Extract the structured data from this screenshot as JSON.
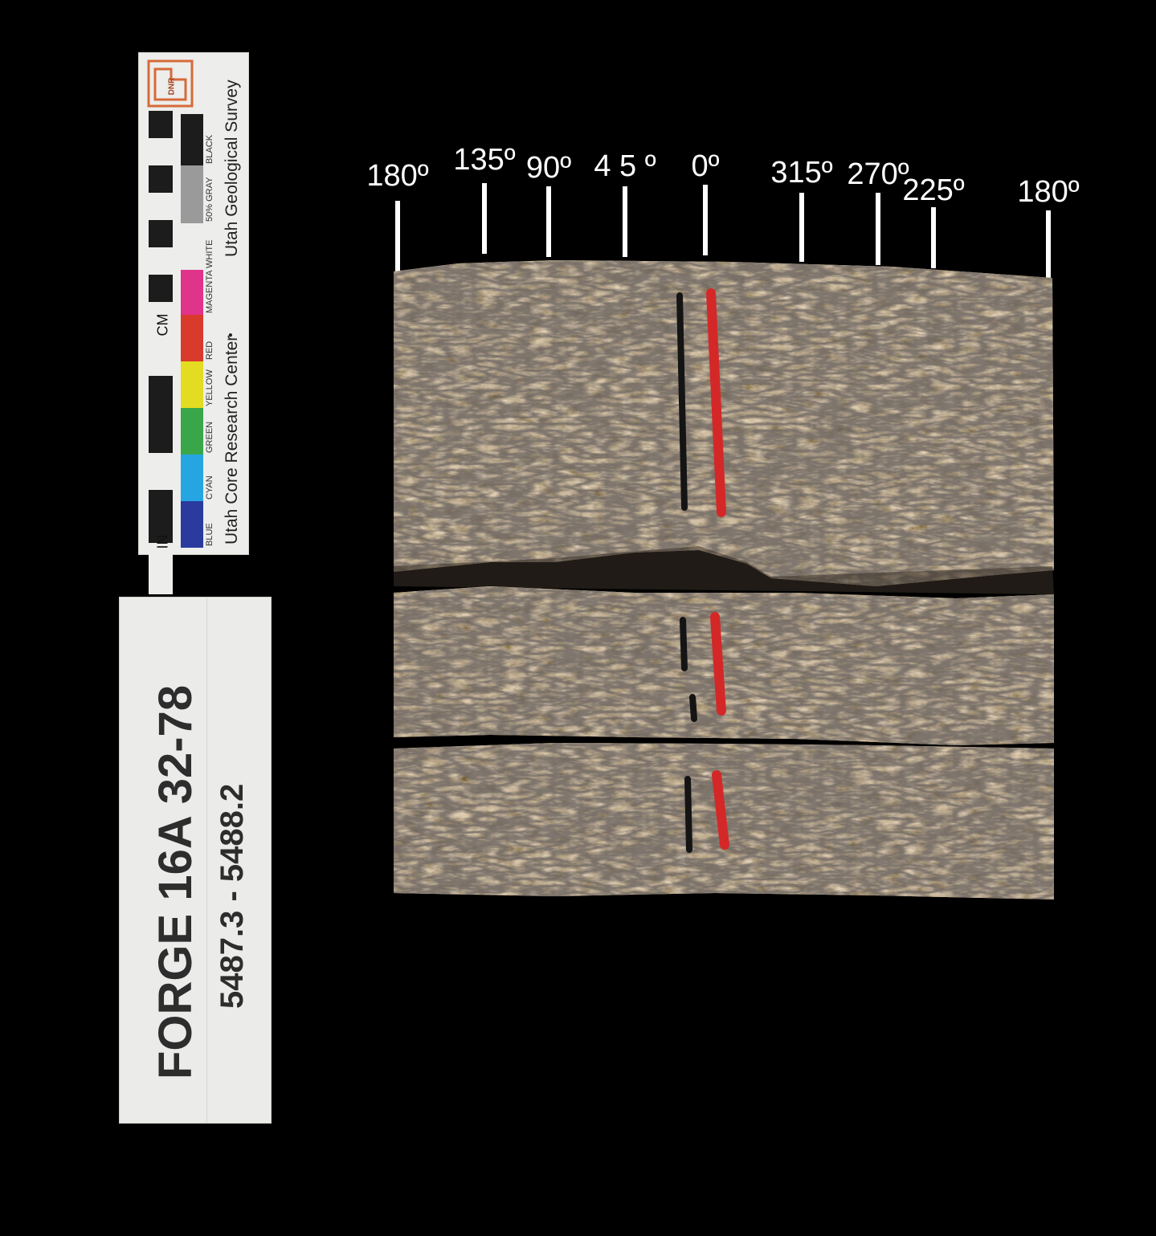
{
  "scale_card": {
    "unit_in": "IN",
    "unit_cm": "CM",
    "organization_top": "Utah Geological Survey",
    "organization_bottom": "Utah Core Research Center",
    "separator": "•",
    "logo_text": "DNR",
    "swatches": [
      {
        "label": "BLUE",
        "color": "#2a3a9e"
      },
      {
        "label": "CYAN",
        "color": "#25a6e3"
      },
      {
        "label": "GREEN",
        "color": "#3aa64a"
      },
      {
        "label": "YELLOW",
        "color": "#e3dc22"
      },
      {
        "label": "RED",
        "color": "#d83a2c"
      },
      {
        "label": "MAGENTA",
        "color": "#e0338a"
      },
      {
        "label": "WHITE",
        "color": "#ededeb"
      },
      {
        "label": "50% GRAY",
        "color": "#9a9a9a"
      },
      {
        "label": "BLACK",
        "color": "#1c1c1c"
      }
    ]
  },
  "specimen_label": {
    "title": "FORGE 16A 32-78",
    "depth_range": "5487.3 - 5488.2"
  },
  "orientation_ticks": [
    {
      "label": "180º",
      "angle": 180
    },
    {
      "label": "135º",
      "angle": 135
    },
    {
      "label": "90º",
      "angle": 90
    },
    {
      "label": "4 5 º",
      "angle": 45
    },
    {
      "label": "0º",
      "angle": 0
    },
    {
      "label": "315º",
      "angle": 315
    },
    {
      "label": "270º",
      "angle": 270
    },
    {
      "label": "225º",
      "angle": 225
    },
    {
      "label": "180º",
      "angle": 180
    }
  ],
  "colors": {
    "background": "#000000",
    "rock_base": "#c9b39a",
    "orientation_line_black": "#141414",
    "orientation_line_red": "#d42828"
  }
}
